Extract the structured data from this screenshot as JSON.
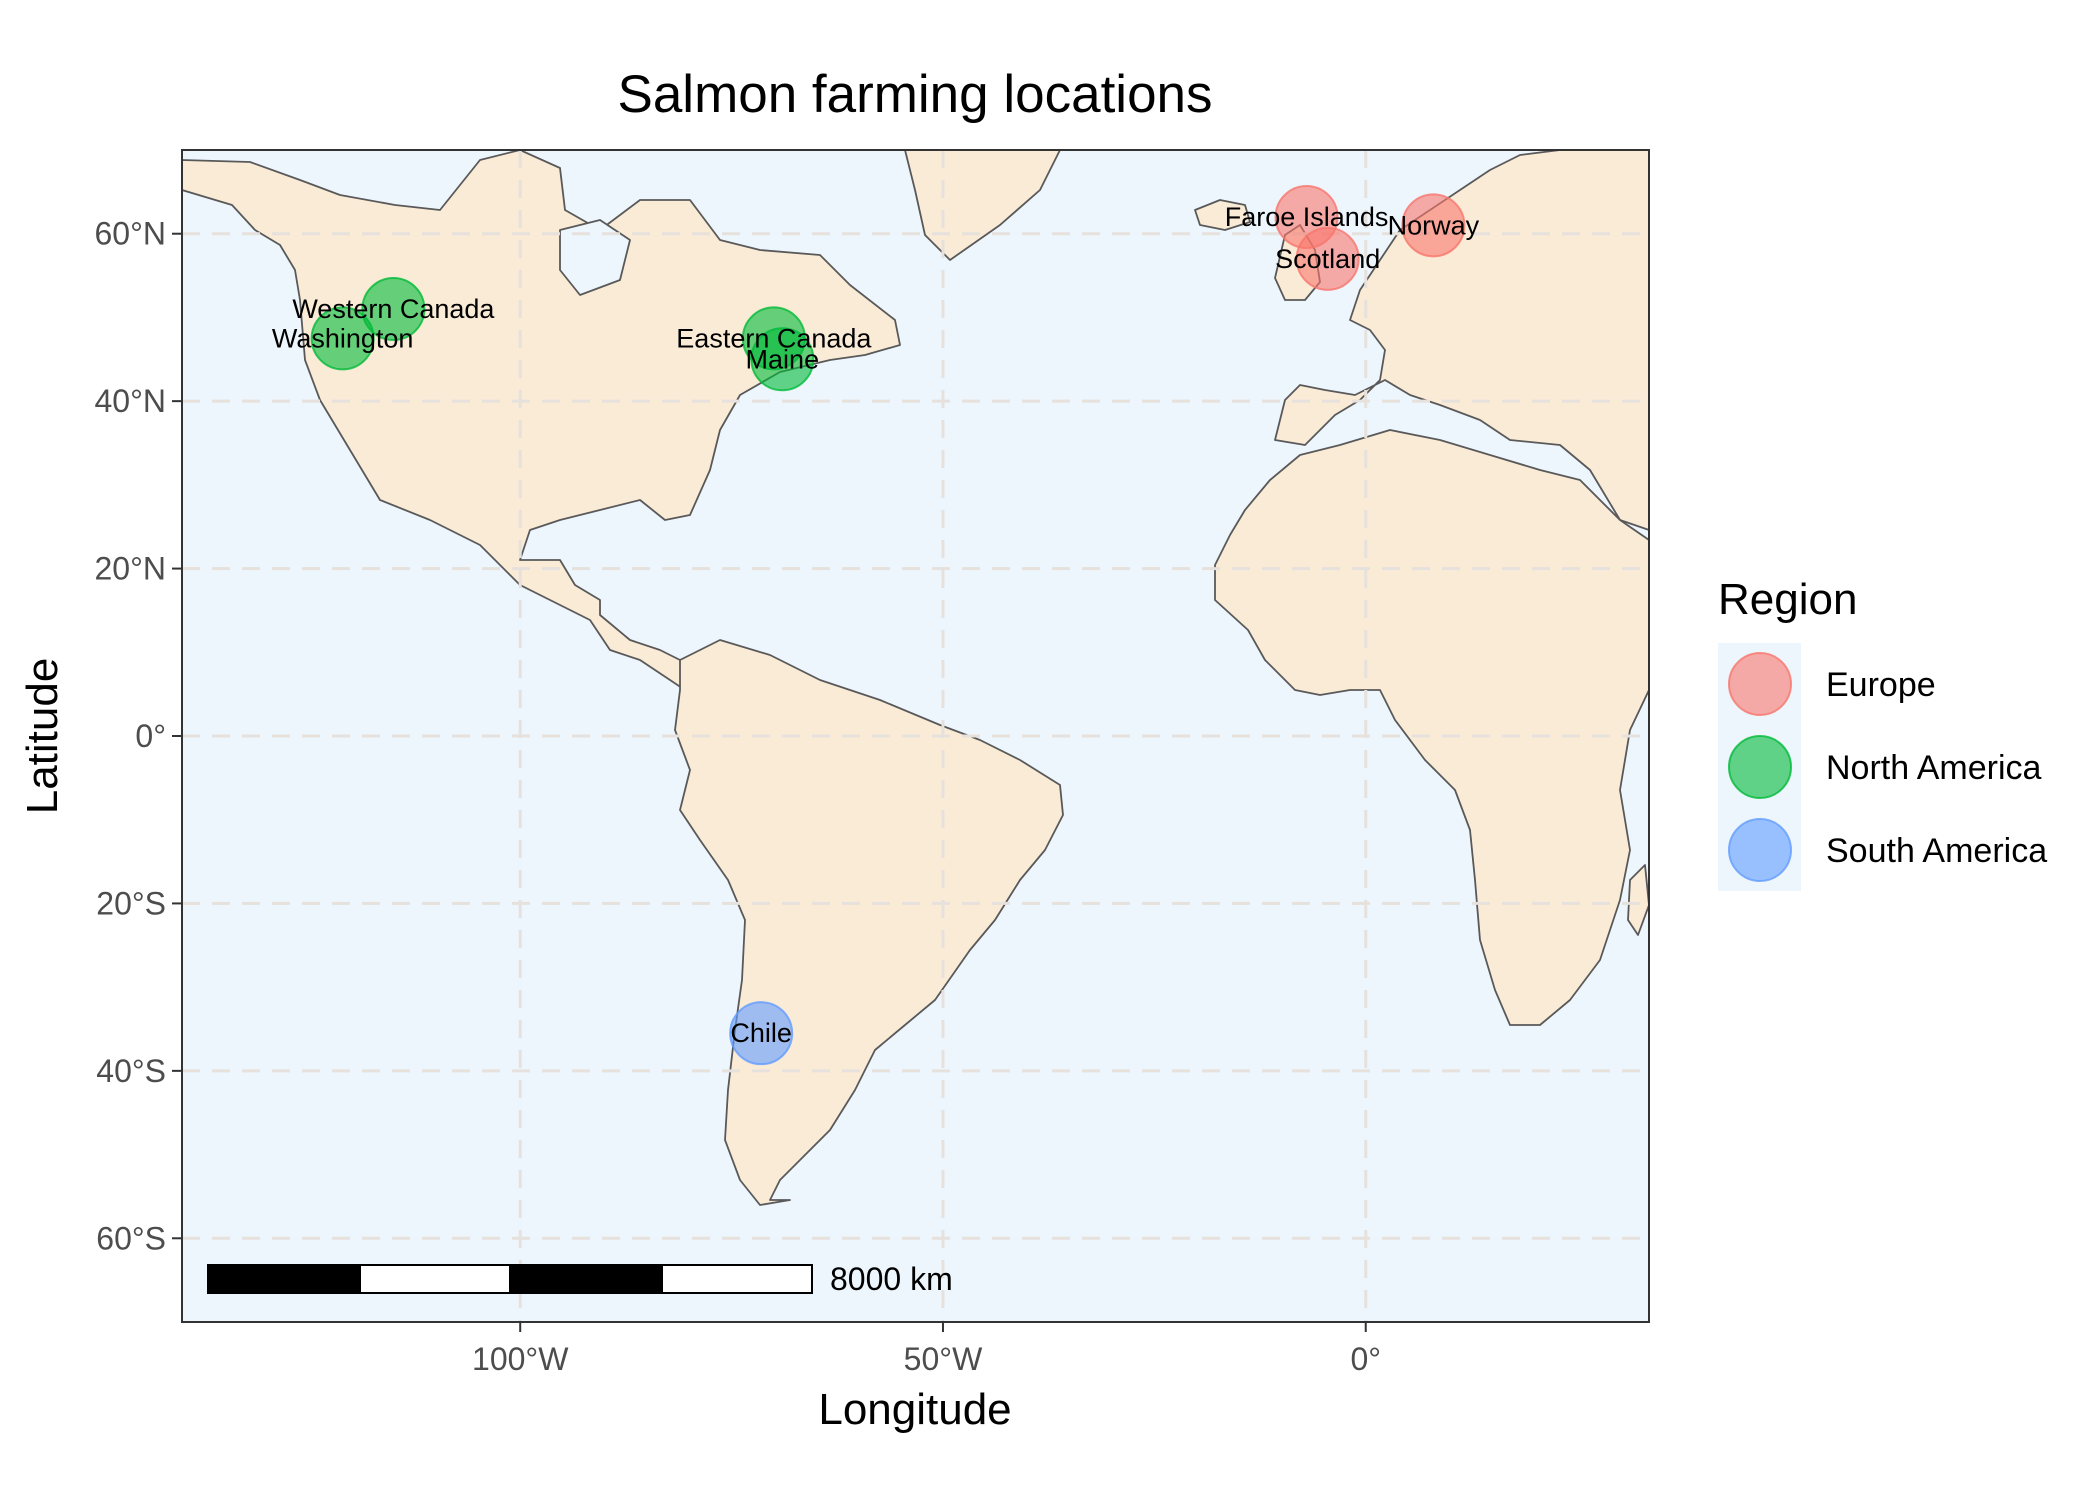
{
  "chart_data": {
    "type": "map",
    "title": "Salmon farming locations",
    "xlabel": "Longitude",
    "ylabel": "Latitude",
    "xlim": [
      -140,
      33.5
    ],
    "ylim": [
      -70,
      70
    ],
    "x_ticks": [
      {
        "value": -100,
        "label": "100°W"
      },
      {
        "value": -50,
        "label": "50°W"
      },
      {
        "value": 0,
        "label": "0°"
      }
    ],
    "y_ticks": [
      {
        "value": 60,
        "label": "60°N"
      },
      {
        "value": 40,
        "label": "40°N"
      },
      {
        "value": 20,
        "label": "20°N"
      },
      {
        "value": 0,
        "label": "0°"
      },
      {
        "value": -20,
        "label": "20°S"
      },
      {
        "value": -40,
        "label": "40°S"
      },
      {
        "value": -60,
        "label": "60°S"
      }
    ],
    "grid": true,
    "legend": {
      "title": "Region",
      "placement": "right",
      "entries": [
        {
          "name": "Europe",
          "color": "#F8766D"
        },
        {
          "name": "North America",
          "color": "#00BA38"
        },
        {
          "name": "South America",
          "color": "#619CFF"
        }
      ]
    },
    "points": [
      {
        "label": "Faroe Islands",
        "lon": -7.0,
        "lat": 62.0,
        "region": "Europe"
      },
      {
        "label": "Scotland",
        "lon": -4.5,
        "lat": 57.0,
        "region": "Europe"
      },
      {
        "label": "Norway",
        "lon": 8.0,
        "lat": 61.0,
        "region": "Europe"
      },
      {
        "label": "Western Canada",
        "lon": -115.0,
        "lat": 51.0,
        "region": "North America"
      },
      {
        "label": "Washington",
        "lon": -121.0,
        "lat": 47.5,
        "region": "North America"
      },
      {
        "label": "Eastern Canada",
        "lon": -70.0,
        "lat": 47.5,
        "region": "North America"
      },
      {
        "label": "Maine",
        "lon": -69.0,
        "lat": 45.0,
        "region": "North America"
      },
      {
        "label": "Chile",
        "lon": -71.5,
        "lat": -35.5,
        "region": "South America"
      }
    ],
    "scale_bar": {
      "label": "8000 km"
    },
    "colors": {
      "ocean": "#EEF6FD",
      "land": "#FAEBD7",
      "border": "#595959",
      "grid": "#E6E1DC"
    }
  }
}
